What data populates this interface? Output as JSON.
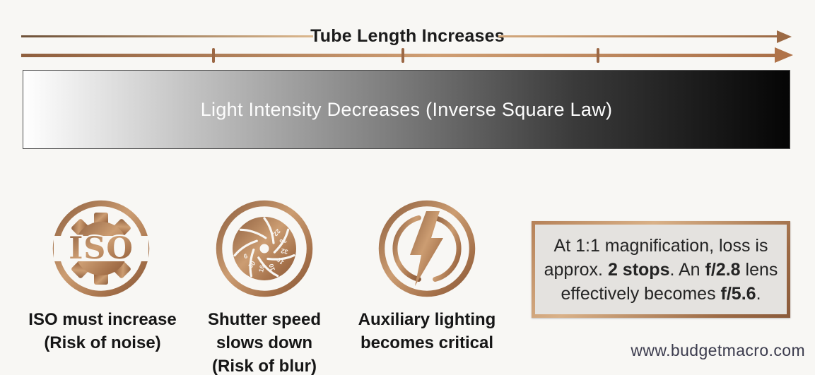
{
  "colors": {
    "background": "#f8f7f4",
    "copper_dark": "#8a5a3a",
    "copper_mid": "#b5814f",
    "copper_light": "#d9b188",
    "bar_border": "#4d4d4d",
    "note_background": "#e4e2df",
    "footer_text": "#3b3b4d",
    "text_dark": "#1c1c1c"
  },
  "top_axis": {
    "label": "Tube Length Increases",
    "tick_count": 3
  },
  "gradient_bar": {
    "label": "Light Intensity Decreases (Inverse Square Law)"
  },
  "factors": [
    {
      "icon": "iso-gear-icon",
      "icon_text": "ISO",
      "caption_lines": [
        "ISO must increase",
        "(Risk of noise)"
      ]
    },
    {
      "icon": "aperture-shutter-icon",
      "dial_numbers": [
        "22",
        "36",
        "32",
        "15",
        "10",
        "16",
        "30",
        "6"
      ],
      "caption_lines": [
        "Shutter speed",
        "slows down",
        "(Risk of blur)"
      ]
    },
    {
      "icon": "lightning-bolt-icon",
      "caption_lines": [
        "Auxiliary lighting",
        "becomes critical"
      ]
    }
  ],
  "note_box": {
    "lines": [
      [
        {
          "t": "At 1:1 magnification, loss is",
          "b": false
        }
      ],
      [
        {
          "t": "approx. ",
          "b": false
        },
        {
          "t": "2 stops",
          "b": true
        },
        {
          "t": ". An ",
          "b": false
        },
        {
          "t": "f/2.8",
          "b": true
        },
        {
          "t": " lens",
          "b": false
        }
      ],
      [
        {
          "t": "effectively becomes ",
          "b": false
        },
        {
          "t": "f/5.6",
          "b": true
        },
        {
          "t": ".",
          "b": false
        }
      ]
    ]
  },
  "footer": {
    "website": "www.budgetmacro.com"
  }
}
